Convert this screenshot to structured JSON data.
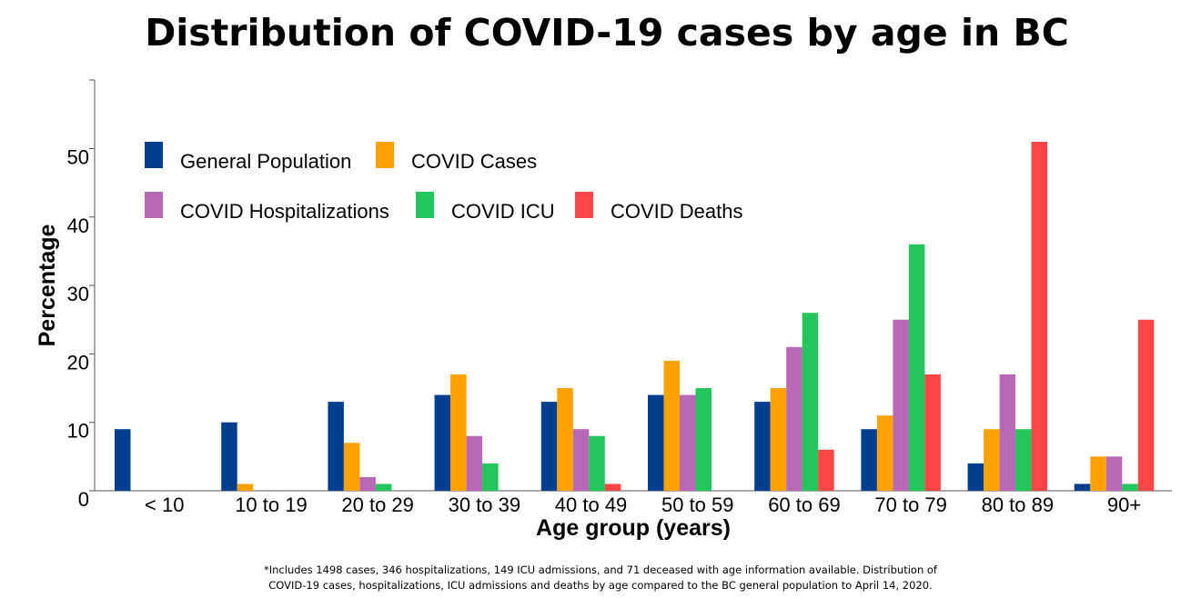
{
  "title": "Distribution of COVID-19 cases by age in BC",
  "footnote": {
    "line1": "*Includes 1498 cases, 346 hospitalizations, 149 ICU admissions, and 71 deceased with age information available. Distribution of",
    "line2": "COVID-19 cases, hospitalizations, ICU admissions and deaths by age compared to the BC general population to April 14, 2020."
  },
  "chart_data": {
    "type": "bar",
    "title": "Distribution of COVID-19 cases by age in BC",
    "xlabel": "Age group (years)",
    "ylabel": "Percentage",
    "ylim": [
      0,
      60
    ],
    "yticks": [
      0,
      10,
      20,
      30,
      40,
      50
    ],
    "grid": false,
    "legend_position": "top-left",
    "categories": [
      "< 10",
      "10 to 19",
      "20 to 29",
      "30 to 39",
      "40 to 49",
      "50 to 59",
      "60 to 69",
      "70 to 79",
      "80 to 89",
      "90+"
    ],
    "series": [
      {
        "name": "General Population",
        "color": "#003f8f",
        "values": [
          9,
          10,
          13,
          14,
          13,
          14,
          13,
          9,
          4,
          1
        ]
      },
      {
        "name": "COVID Cases",
        "color": "#ffa100",
        "values": [
          0,
          1,
          7,
          17,
          15,
          19,
          15,
          11,
          9,
          5
        ]
      },
      {
        "name": "COVID Hospitalizations",
        "color": "#b768b6",
        "values": [
          0,
          0,
          2,
          8,
          9,
          14,
          21,
          25,
          17,
          5
        ]
      },
      {
        "name": "COVID ICU",
        "color": "#22c65a",
        "values": [
          0,
          0,
          1,
          4,
          8,
          15,
          26,
          36,
          9,
          1
        ]
      },
      {
        "name": "COVID Deaths",
        "color": "#ff4646",
        "values": [
          0,
          0,
          0,
          0,
          1,
          0,
          6,
          17,
          51,
          25
        ]
      }
    ]
  }
}
